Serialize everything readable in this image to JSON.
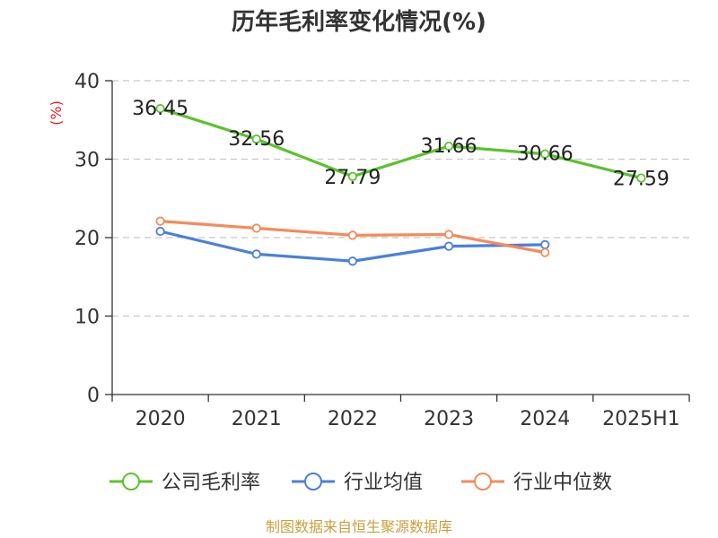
{
  "chart_data": {
    "type": "line",
    "title": "历年毛利率变化情况(%)",
    "ylabel": "(%)",
    "xlabel": "",
    "categories": [
      "2020",
      "2021",
      "2022",
      "2023",
      "2024",
      "2025H1"
    ],
    "ylim": [
      0,
      40
    ],
    "yticks": [
      0,
      10,
      20,
      30,
      40
    ],
    "grid": true,
    "legend_position": "bottom",
    "series": [
      {
        "name": "公司毛利率",
        "values": [
          36.45,
          32.56,
          27.79,
          31.66,
          30.66,
          27.59
        ],
        "color": "#5ac32c",
        "labels": [
          "36.45",
          "32.56",
          "27.79",
          "31.66",
          "30.66",
          "27.59"
        ]
      },
      {
        "name": "行业均值",
        "values": [
          20.8,
          17.9,
          17.0,
          18.9,
          19.1,
          null
        ],
        "color": "#4a7fdc"
      },
      {
        "name": "行业中位数",
        "values": [
          22.1,
          21.2,
          20.3,
          20.4,
          18.1,
          null
        ],
        "color": "#f48b5a"
      }
    ],
    "unit_color": "#e02020",
    "source": "制图数据来自恒生聚源数据库",
    "source_color": "#c8a040"
  }
}
